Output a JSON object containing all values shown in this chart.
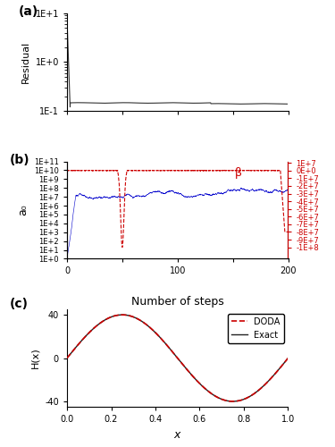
{
  "fig_width": 3.75,
  "fig_height": 5.0,
  "dpi": 100,
  "panel_a": {
    "label": "(a)",
    "ylabel": "Residual",
    "color": "#333333",
    "n_steps": 200
  },
  "panel_b": {
    "label": "(b)",
    "ylabel": "a₀",
    "beta_label": "β",
    "a0_color": "#0000cc",
    "beta_color": "#cc0000",
    "n_steps": 200,
    "left_ytick_labels": [
      "1E+0",
      "1E+1",
      "1E+2",
      "1E+3",
      "1E+4",
      "1E+5",
      "1E+6",
      "1E+7",
      "1E+8",
      "1E+9",
      "1E+10",
      "1E+11"
    ],
    "right_ytick_labels": [
      "1E+7",
      "0E+0",
      "-1E+7",
      "-2E+7",
      "-3E+7",
      "-4E+7",
      "-5E+7",
      "-6E+7",
      "-7E+7",
      "-8E+7",
      "-9E+7",
      "-1E+8"
    ]
  },
  "panel_c": {
    "label": "(c)",
    "title": "Number of steps",
    "xlabel": "$x$",
    "ylabel": "H(x)",
    "xlim": [
      0.0,
      1.0
    ],
    "ylim": [
      -45,
      45
    ],
    "yticks": [
      -40,
      0,
      40
    ],
    "xticks": [
      0.0,
      0.2,
      0.4,
      0.6,
      0.8,
      1.0
    ],
    "doda_color": "#cc0000",
    "exact_color": "#222222",
    "legend_labels": [
      "DODA",
      "Exact"
    ]
  },
  "panel_labels_fontsize": 10,
  "axis_label_fontsize": 8,
  "tick_fontsize": 7
}
